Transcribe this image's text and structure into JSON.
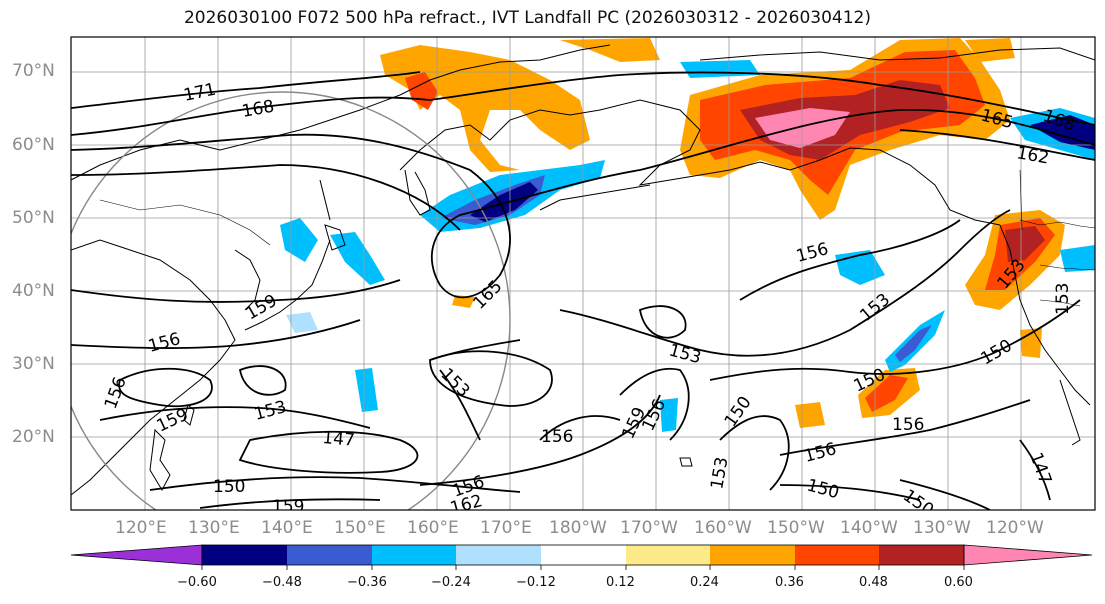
{
  "title": "2026030100 F072 500 hPa refract., IVT Landfall PC (2026030312 - 2026030412)",
  "lat_labels": [
    "70°N",
    "60°N",
    "50°N",
    "40°N",
    "30°N",
    "20°N"
  ],
  "lon_labels": [
    "120°E",
    "130°E",
    "140°E",
    "150°E",
    "160°E",
    "170°E",
    "180°W",
    "170°W",
    "160°W",
    "150°W",
    "140°W",
    "130°W",
    "120°W"
  ],
  "contour_labels": [
    "171",
    "168",
    "165",
    "168",
    "162",
    "156",
    "153",
    "153",
    "153",
    "150",
    "150",
    "156",
    "159",
    "156",
    "156",
    "159",
    "153",
    "147",
    "150",
    "159",
    "162",
    "156",
    "165",
    "153",
    "156",
    "159",
    "156",
    "150",
    "153",
    "156",
    "150",
    "150",
    "147"
  ],
  "colorbar": {
    "ticks": [
      "−0.60",
      "−0.48",
      "−0.36",
      "−0.24",
      "−0.12",
      "0.12",
      "0.24",
      "0.36",
      "0.48",
      "0.60"
    ],
    "colors": {
      "under": "#9b30d9",
      "b1": "#000080",
      "b2": "#3a5bd1",
      "b3": "#00bfff",
      "b4": "#b0e0ff",
      "b5": "#ffffff",
      "b6": "#ffea8a",
      "b7": "#ffa500",
      "b8": "#ff4500",
      "b9": "#b22222",
      "over": "#ff85b3"
    }
  }
}
